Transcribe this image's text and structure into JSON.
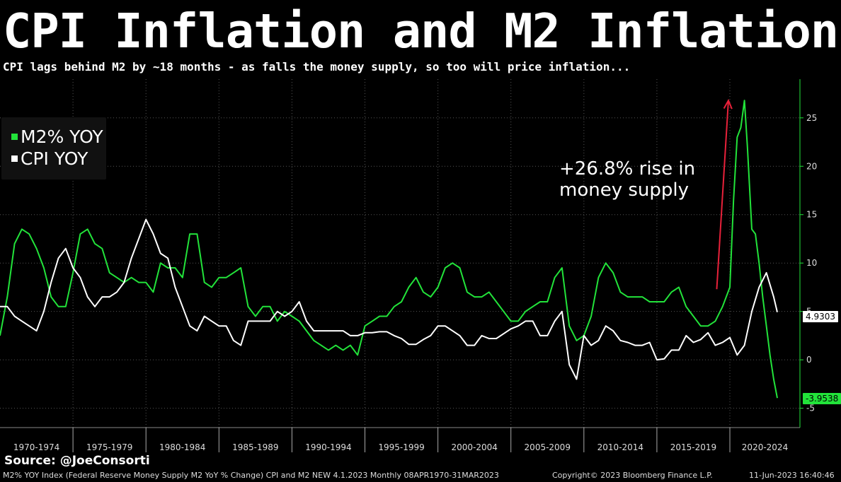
{
  "title": "CPI Inflation and M2 Inflation",
  "subtitle": "CPI lags behind M2 by ~18 months - as falls the money supply, so too will price inflation...",
  "legend": {
    "m2": "M2% YOY",
    "cpi": "CPI YOY"
  },
  "annotation": "+26.8% rise in\nmoney supply",
  "source": "Source: @JoeConsorti",
  "footer": {
    "left": "M2% YOY Index (Federal Reserve Money Supply M2 YoY % Change) CPI and M2 NEW 4.1.2023  Monthly 08APR1970-31MAR2023",
    "mid": "Copyright© 2023 Bloomberg Finance L.P.",
    "right": "11-Jun-2023 16:40:46"
  },
  "last_values": {
    "cpi": "4.9303",
    "m2": "-3.9538"
  },
  "colors": {
    "m2": "#22e33a",
    "cpi": "#ffffff",
    "arrow": "#e8213a",
    "grid": "#555555"
  },
  "chart_data": {
    "type": "line",
    "ylim": [
      -7,
      29
    ],
    "yticks": [
      -5,
      0,
      5,
      10,
      15,
      20,
      25
    ],
    "xlim": [
      1970.0,
      2024.8
    ],
    "period_labels": [
      "1970-1974",
      "1975-1979",
      "1980-1984",
      "1985-1989",
      "1990-1994",
      "1995-1999",
      "2000-2004",
      "2005-2009",
      "2010-2014",
      "2015-2019",
      "2020-2024"
    ],
    "grid": "dotted",
    "legend_position": "top-left",
    "series": [
      {
        "name": "M2% YOY",
        "x": [
          1970.0,
          1970.5,
          1971.0,
          1971.5,
          1972.0,
          1972.5,
          1973.0,
          1973.5,
          1974.0,
          1974.5,
          1975.0,
          1975.5,
          1976.0,
          1976.5,
          1977.0,
          1977.5,
          1978.0,
          1978.5,
          1979.0,
          1979.5,
          1980.0,
          1980.5,
          1981.0,
          1981.5,
          1982.0,
          1982.5,
          1983.0,
          1983.5,
          1984.0,
          1984.5,
          1985.0,
          1985.5,
          1986.0,
          1986.5,
          1987.0,
          1987.5,
          1988.0,
          1988.5,
          1989.0,
          1989.5,
          1990.0,
          1990.5,
          1991.0,
          1991.5,
          1992.0,
          1992.5,
          1993.0,
          1993.5,
          1994.0,
          1994.5,
          1995.0,
          1995.5,
          1996.0,
          1996.5,
          1997.0,
          1997.5,
          1998.0,
          1998.5,
          1999.0,
          1999.5,
          2000.0,
          2000.5,
          2001.0,
          2001.5,
          2002.0,
          2002.5,
          2003.0,
          2003.5,
          2004.0,
          2004.5,
          2005.0,
          2005.5,
          2006.0,
          2006.5,
          2007.0,
          2007.5,
          2008.0,
          2008.5,
          2009.0,
          2009.5,
          2010.0,
          2010.5,
          2011.0,
          2011.5,
          2012.0,
          2012.5,
          2013.0,
          2013.5,
          2014.0,
          2014.5,
          2015.0,
          2015.5,
          2016.0,
          2016.5,
          2017.0,
          2017.5,
          2018.0,
          2018.5,
          2019.0,
          2019.5,
          2020.0,
          2020.25,
          2020.5,
          2020.75,
          2021.0,
          2021.2,
          2021.5,
          2021.75,
          2022.0,
          2022.25,
          2022.5,
          2022.75,
          2023.0,
          2023.25
        ],
        "y": [
          2.5,
          6.5,
          12.0,
          13.5,
          13.0,
          11.5,
          9.5,
          6.5,
          5.5,
          5.5,
          9.0,
          13.0,
          13.5,
          12.0,
          11.5,
          9.0,
          8.5,
          8.0,
          8.5,
          8.0,
          8.0,
          7.0,
          10.0,
          9.5,
          9.5,
          8.5,
          13.0,
          13.0,
          8.0,
          7.5,
          8.5,
          8.5,
          9.0,
          9.5,
          5.5,
          4.5,
          5.5,
          5.5,
          4.0,
          5.0,
          4.5,
          4.0,
          3.0,
          2.0,
          1.5,
          1.0,
          1.5,
          1.0,
          1.5,
          0.5,
          3.5,
          4.0,
          4.5,
          4.5,
          5.5,
          6.0,
          7.5,
          8.5,
          7.0,
          6.5,
          7.5,
          9.5,
          10.0,
          9.5,
          7.0,
          6.5,
          6.5,
          7.0,
          6.0,
          5.0,
          4.0,
          4.0,
          5.0,
          5.5,
          6.0,
          6.0,
          8.5,
          9.5,
          3.5,
          2.0,
          2.5,
          4.5,
          8.5,
          10.0,
          9.0,
          7.0,
          6.5,
          6.5,
          6.5,
          6.0,
          6.0,
          6.0,
          7.0,
          7.5,
          5.5,
          4.5,
          3.5,
          3.5,
          4.0,
          5.5,
          7.5,
          16.5,
          23.0,
          24.0,
          26.8,
          22.0,
          13.5,
          13.0,
          10.0,
          6.5,
          3.5,
          0.5,
          -2.0,
          -3.95
        ]
      },
      {
        "name": "CPI YOY",
        "x": [
          1970.0,
          1970.5,
          1971.0,
          1971.5,
          1972.0,
          1972.5,
          1973.0,
          1973.5,
          1974.0,
          1974.5,
          1975.0,
          1975.5,
          1976.0,
          1976.5,
          1977.0,
          1977.5,
          1978.0,
          1978.5,
          1979.0,
          1979.5,
          1980.0,
          1980.5,
          1981.0,
          1981.5,
          1982.0,
          1982.5,
          1983.0,
          1983.5,
          1984.0,
          1984.5,
          1985.0,
          1985.5,
          1986.0,
          1986.5,
          1987.0,
          1987.5,
          1988.0,
          1988.5,
          1989.0,
          1989.5,
          1990.0,
          1990.5,
          1991.0,
          1991.5,
          1992.0,
          1992.5,
          1993.0,
          1993.5,
          1994.0,
          1994.5,
          1995.0,
          1995.5,
          1996.0,
          1996.5,
          1997.0,
          1997.5,
          1998.0,
          1998.5,
          1999.0,
          1999.5,
          2000.0,
          2000.5,
          2001.0,
          2001.5,
          2002.0,
          2002.5,
          2003.0,
          2003.5,
          2004.0,
          2004.5,
          2005.0,
          2005.5,
          2006.0,
          2006.5,
          2007.0,
          2007.5,
          2008.0,
          2008.5,
          2009.0,
          2009.5,
          2010.0,
          2010.5,
          2011.0,
          2011.5,
          2012.0,
          2012.5,
          2013.0,
          2013.5,
          2014.0,
          2014.5,
          2015.0,
          2015.5,
          2016.0,
          2016.5,
          2017.0,
          2017.5,
          2018.0,
          2018.5,
          2019.0,
          2019.5,
          2020.0,
          2020.5,
          2021.0,
          2021.5,
          2022.0,
          2022.5,
          2023.0,
          2023.25
        ],
        "y": [
          5.5,
          5.5,
          4.5,
          4.0,
          3.5,
          3.0,
          5.0,
          8.0,
          10.5,
          11.5,
          9.5,
          8.5,
          6.5,
          5.5,
          6.5,
          6.5,
          7.0,
          8.0,
          10.5,
          12.5,
          14.5,
          13.0,
          11.0,
          10.5,
          7.5,
          5.5,
          3.5,
          3.0,
          4.5,
          4.0,
          3.5,
          3.5,
          2.0,
          1.5,
          4.0,
          4.0,
          4.0,
          4.0,
          5.0,
          4.5,
          5.0,
          6.0,
          4.0,
          3.0,
          3.0,
          3.0,
          3.0,
          3.0,
          2.5,
          2.5,
          2.8,
          2.8,
          2.9,
          2.9,
          2.5,
          2.2,
          1.6,
          1.6,
          2.1,
          2.5,
          3.5,
          3.5,
          3.0,
          2.5,
          1.5,
          1.5,
          2.5,
          2.2,
          2.2,
          2.7,
          3.2,
          3.5,
          4.0,
          4.0,
          2.5,
          2.5,
          4.0,
          5.0,
          -0.5,
          -2.0,
          2.5,
          1.5,
          2.0,
          3.5,
          3.0,
          2.0,
          1.8,
          1.5,
          1.5,
          1.8,
          0.0,
          0.1,
          1.0,
          1.0,
          2.5,
          1.8,
          2.1,
          2.8,
          1.5,
          1.8,
          2.3,
          0.5,
          1.5,
          5.0,
          7.5,
          9.0,
          6.5,
          4.93
        ]
      }
    ]
  }
}
